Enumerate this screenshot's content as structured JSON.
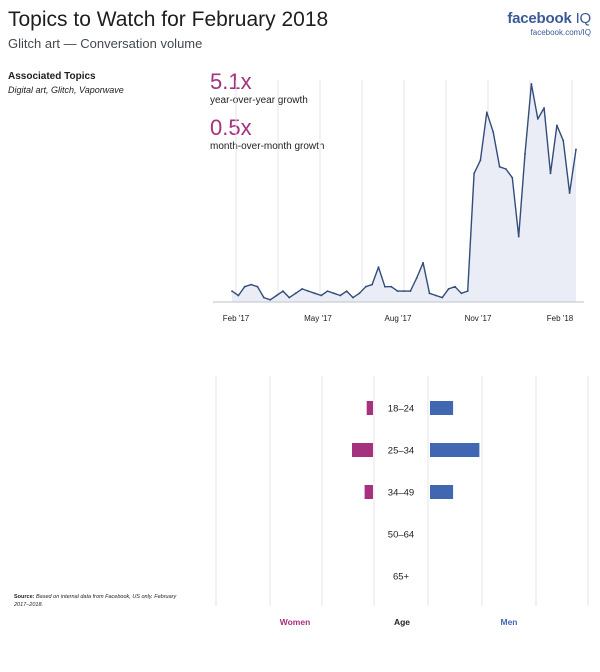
{
  "header": {
    "title": "Topics to Watch for February 2018",
    "subtitle": "Glitch art — Conversation volume",
    "brand": "facebook",
    "brand_suffix": "IQ",
    "brand_url": "facebook.com/IQ"
  },
  "associated": {
    "heading": "Associated Topics",
    "list": "Digital art, Glitch, Vaporwave"
  },
  "stats": [
    {
      "value": "5.1x",
      "label": "year-over-year growth"
    },
    {
      "value": "0.5x",
      "label": "month-over-month growth"
    }
  ],
  "source": {
    "label": "Source:",
    "text": "Based on internal data from Facebook, US only. February 2017–2018."
  },
  "colors": {
    "line": "#334d7a",
    "area": "#eaedf6",
    "women": "#a4327e",
    "men": "#4267b2",
    "grid": "#e4e6eb"
  },
  "chart_data": [
    {
      "type": "area",
      "title": "Conversation volume",
      "x_tick_labels": [
        "Feb '17",
        "May '17",
        "Aug '17",
        "Nov '17",
        "Feb '18"
      ],
      "ylim": [
        0,
        100
      ],
      "y_axis_labels": "none",
      "grid": "vertical",
      "series": [
        {
          "values": [
            5,
            3,
            7,
            8,
            7,
            2,
            1,
            3,
            5,
            2,
            4,
            6,
            5,
            4,
            3,
            5,
            4,
            3,
            5,
            2,
            4,
            7,
            8,
            16,
            7,
            7,
            5,
            5,
            5,
            11,
            18,
            4,
            3,
            2,
            6,
            7,
            4,
            5,
            59,
            65,
            87,
            78,
            62,
            61,
            57,
            30,
            68,
            100,
            84,
            89,
            59,
            81,
            74,
            50,
            70
          ]
        }
      ]
    },
    {
      "type": "bar",
      "orientation": "horizontal",
      "categories": [
        "18–24",
        "25–34",
        "34–49",
        "50–64",
        "65+"
      ],
      "xlabel_center": "Age",
      "series": [
        {
          "name": "Women",
          "values": [
            6,
            20,
            8,
            0,
            0
          ]
        },
        {
          "name": "Men",
          "values": [
            22,
            47,
            22,
            0,
            0
          ]
        }
      ]
    }
  ]
}
